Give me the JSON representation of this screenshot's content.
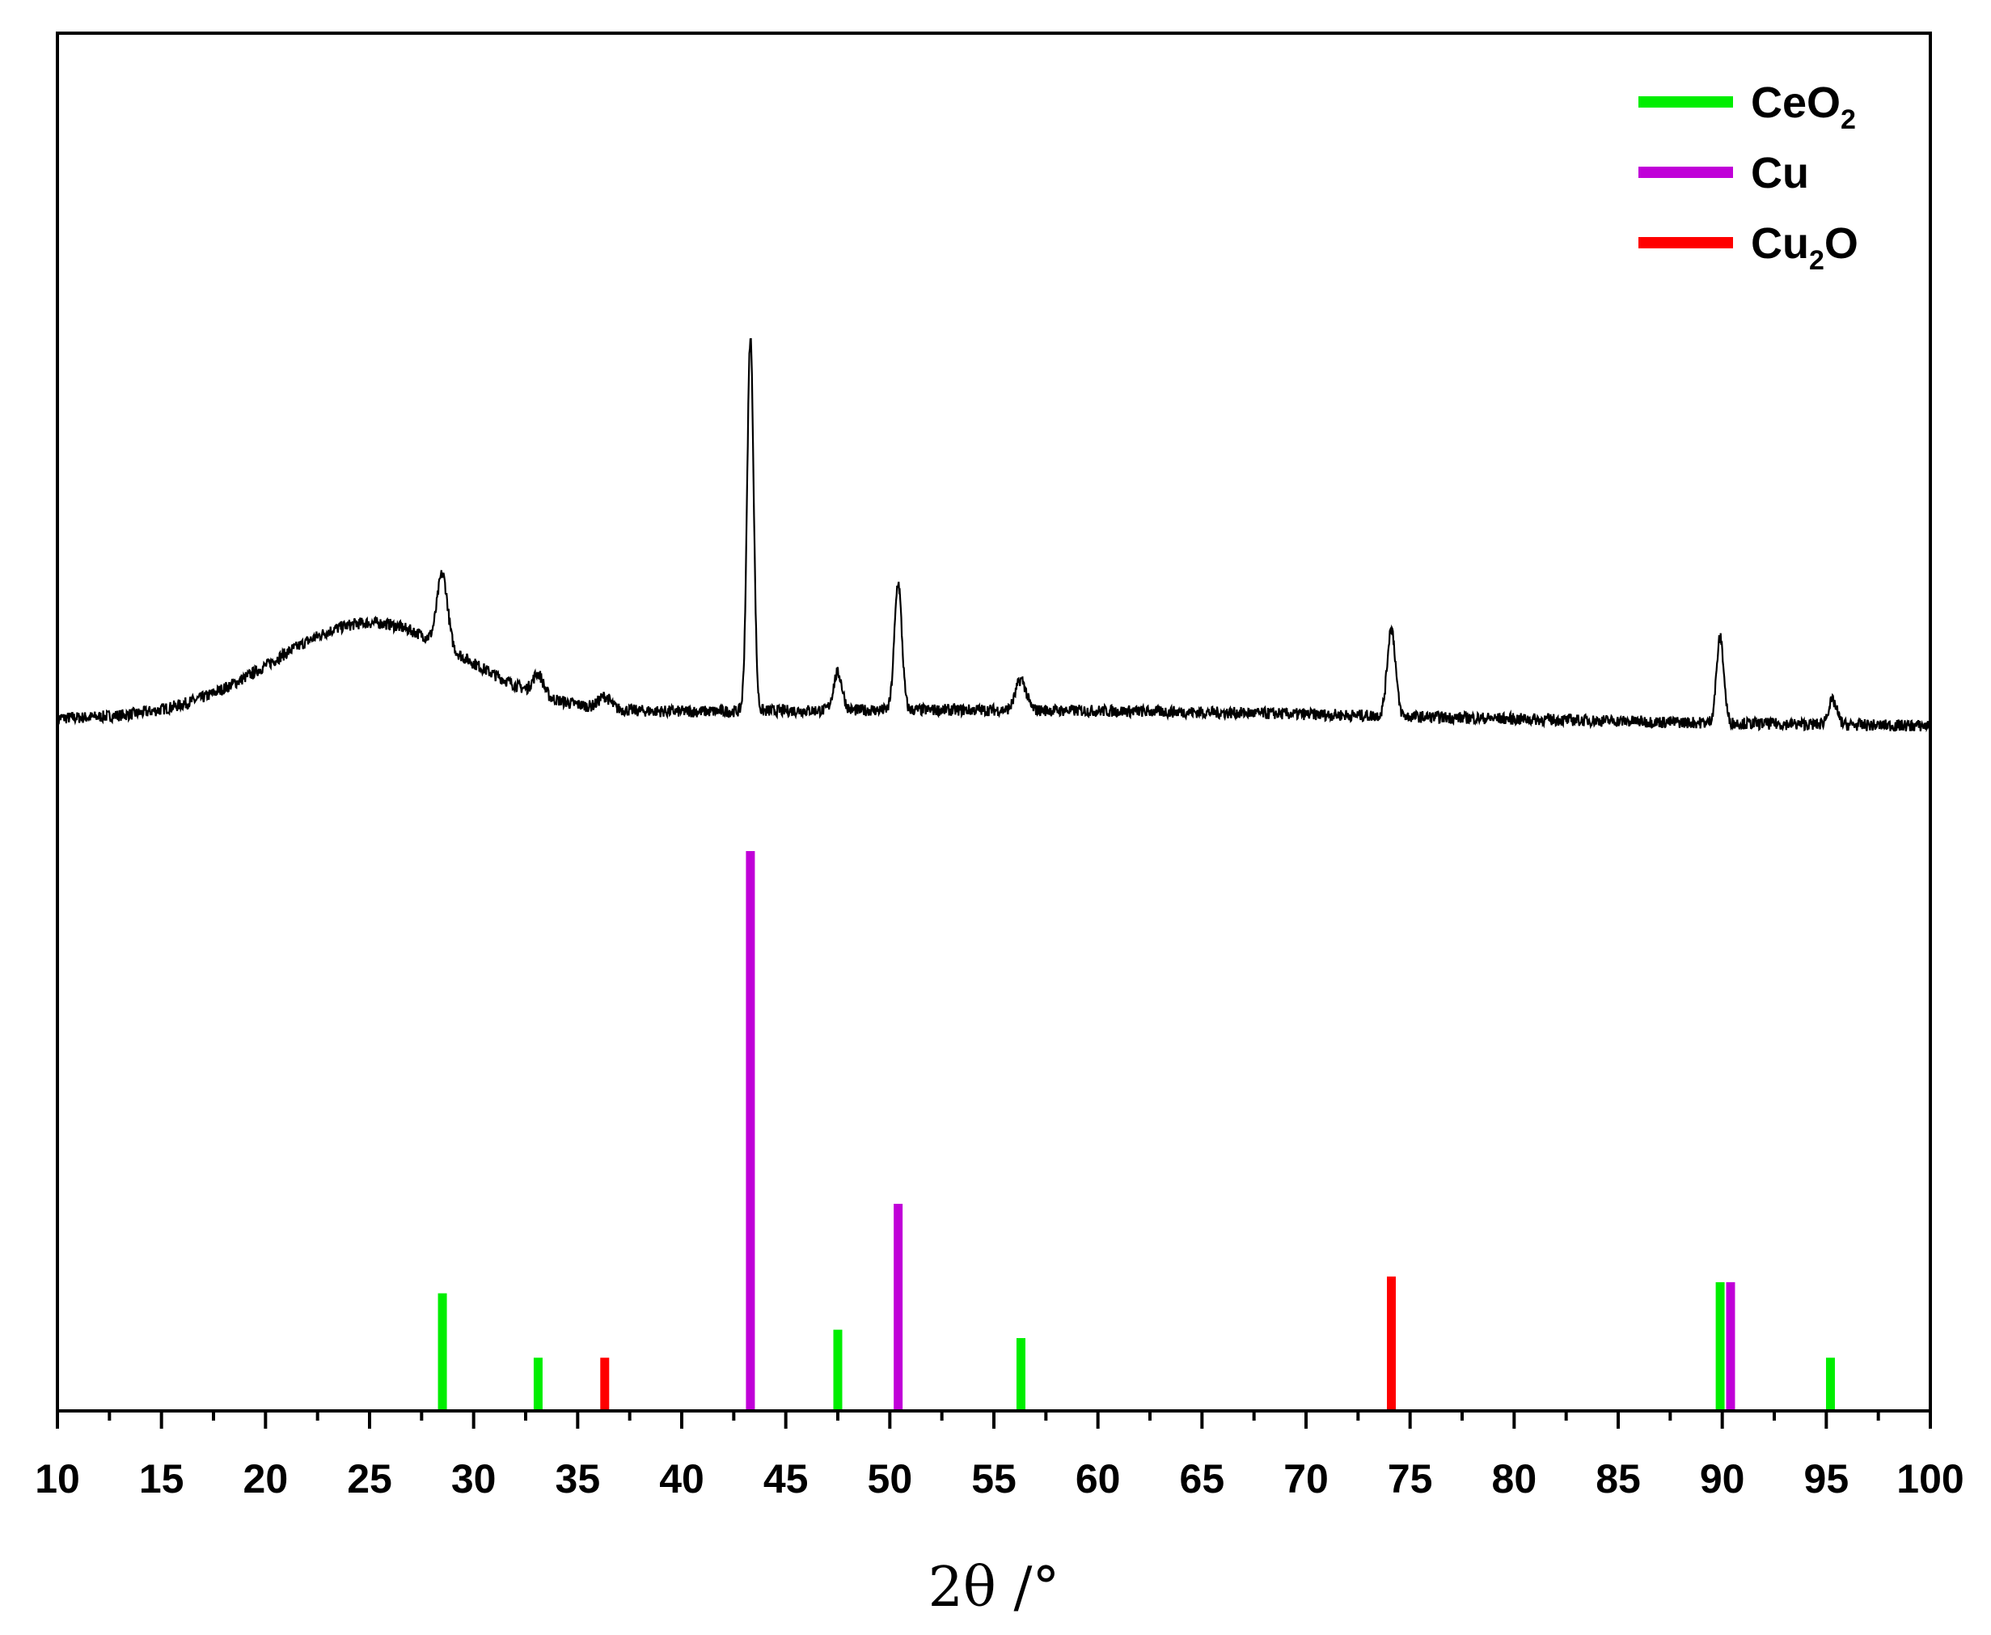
{
  "chart_data": {
    "type": "line",
    "xlabel": "2θ /°",
    "ylabel": "",
    "xlim": [
      10,
      100
    ],
    "x_ticks": [
      "10",
      "15",
      "20",
      "25",
      "30",
      "35",
      "40",
      "45",
      "50",
      "55",
      "60",
      "65",
      "70",
      "75",
      "80",
      "85",
      "90",
      "95",
      "100"
    ],
    "grid": false,
    "legend_position": "top-right",
    "legend": [
      {
        "name": "CeO",
        "sub": "2",
        "tail": "",
        "color": "#00ee00"
      },
      {
        "name": "Cu",
        "sub": "",
        "tail": "",
        "color": "#c000d8"
      },
      {
        "name": "Cu",
        "sub": "2",
        "tail": "O",
        "color": "#ff0000"
      }
    ],
    "pattern_color": "#000000",
    "pattern_peaks": [
      {
        "x": 28.5,
        "h": 0.42,
        "w": 0.35
      },
      {
        "x": 33.1,
        "h": 0.12,
        "w": 0.35
      },
      {
        "x": 36.3,
        "h": 0.07,
        "w": 0.4
      },
      {
        "x": 43.3,
        "h": 2.2,
        "w": 0.22
      },
      {
        "x": 47.5,
        "h": 0.22,
        "w": 0.3
      },
      {
        "x": 50.4,
        "h": 0.75,
        "w": 0.25
      },
      {
        "x": 56.3,
        "h": 0.18,
        "w": 0.35
      },
      {
        "x": 74.1,
        "h": 0.52,
        "w": 0.28
      },
      {
        "x": 89.9,
        "h": 0.5,
        "w": 0.25
      },
      {
        "x": 95.3,
        "h": 0.14,
        "w": 0.3
      }
    ],
    "reference_lines": [
      {
        "phase": "CeO2",
        "x": 28.5,
        "intensity": 21
      },
      {
        "phase": "CeO2",
        "x": 33.1,
        "intensity": 9.5
      },
      {
        "phase": "Cu2O",
        "x": 36.3,
        "intensity": 9.5
      },
      {
        "phase": "Cu",
        "x": 43.3,
        "intensity": 100
      },
      {
        "phase": "CeO2",
        "x": 47.5,
        "intensity": 14.5
      },
      {
        "phase": "Cu",
        "x": 50.4,
        "intensity": 37
      },
      {
        "phase": "CeO2",
        "x": 56.3,
        "intensity": 13
      },
      {
        "phase": "Cu2O",
        "x": 74.1,
        "intensity": 24
      },
      {
        "phase": "CeO2",
        "x": 89.9,
        "intensity": 23
      },
      {
        "phase": "Cu",
        "x": 90.4,
        "intensity": 23
      },
      {
        "phase": "CeO2",
        "x": 95.2,
        "intensity": 9.5
      }
    ]
  }
}
